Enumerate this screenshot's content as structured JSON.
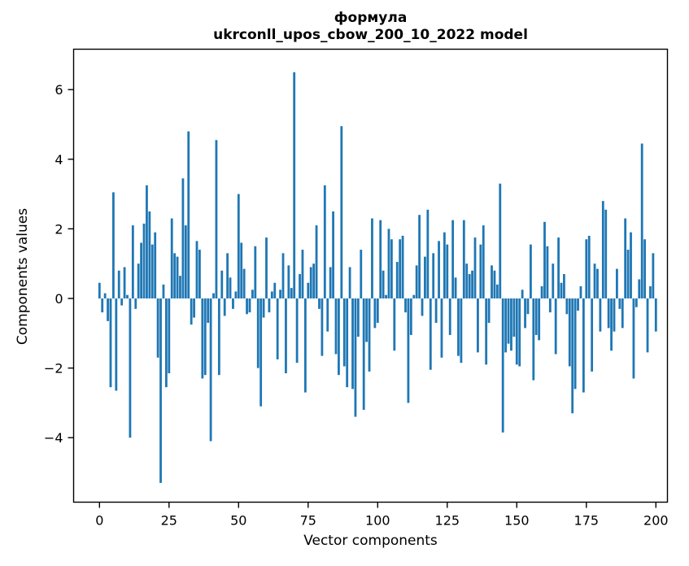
{
  "figure": {
    "background": "#ffffff",
    "spine_color": "#000000",
    "tick_label_color": "#000000"
  },
  "chart_data": {
    "type": "bar",
    "title": "формула",
    "subtitle": "ukrconll_upos_cbow_200_10_2022 model",
    "xlabel": "Vector components",
    "ylabel": "Components values",
    "bar_color": "#1f77b4",
    "grid": false,
    "legend": null,
    "xlim": [
      -10,
      205
    ],
    "ylim": [
      -5.85,
      7.15
    ],
    "xticks": [
      0,
      25,
      50,
      75,
      100,
      125,
      150,
      175,
      200
    ],
    "yticks": [
      6,
      4,
      2,
      0,
      -2,
      -4
    ],
    "x_start": 0,
    "values": [
      0.45,
      -0.4,
      0.15,
      -0.65,
      -2.55,
      3.05,
      -2.65,
      0.8,
      -0.2,
      0.9,
      0.1,
      -4.0,
      2.1,
      -0.3,
      1.0,
      1.6,
      2.15,
      3.25,
      2.5,
      1.55,
      1.9,
      -1.7,
      -5.3,
      0.4,
      -2.55,
      -2.15,
      2.3,
      1.3,
      1.2,
      0.65,
      3.45,
      2.1,
      4.8,
      -0.75,
      -0.55,
      1.65,
      1.4,
      -2.3,
      -2.2,
      -0.7,
      -4.1,
      0.15,
      4.55,
      -2.2,
      0.8,
      -0.5,
      1.3,
      0.6,
      -0.3,
      0.2,
      3.0,
      1.6,
      0.85,
      -0.45,
      -0.4,
      0.25,
      1.5,
      -2.0,
      -3.1,
      -0.55,
      1.75,
      -0.4,
      0.2,
      0.45,
      -1.75,
      0.25,
      1.3,
      -2.15,
      0.95,
      0.3,
      6.5,
      -1.85,
      0.7,
      1.4,
      -2.7,
      0.45,
      0.9,
      1.0,
      2.1,
      -0.3,
      -1.65,
      3.25,
      -0.95,
      0.9,
      2.5,
      -1.6,
      -2.2,
      4.95,
      -1.95,
      -2.55,
      0.9,
      -2.6,
      -3.4,
      -1.1,
      1.4,
      -3.2,
      -1.25,
      -2.1,
      2.3,
      -0.85,
      -0.7,
      2.25,
      0.8,
      0.1,
      2.0,
      1.7,
      -1.5,
      1.05,
      1.7,
      1.8,
      -0.4,
      -3.0,
      -1.05,
      0.1,
      0.95,
      2.4,
      -0.5,
      1.2,
      2.55,
      -2.05,
      1.3,
      -0.7,
      1.65,
      -1.7,
      1.9,
      1.55,
      -1.05,
      2.25,
      0.6,
      -1.65,
      -1.85,
      2.25,
      1.0,
      0.7,
      0.8,
      1.75,
      -1.55,
      1.55,
      2.1,
      -1.9,
      -0.7,
      0.95,
      0.8,
      0.4,
      3.3,
      -3.85,
      -1.55,
      -1.3,
      -1.5,
      -1.1,
      -1.9,
      -1.95,
      0.25,
      -0.85,
      -0.45,
      1.55,
      -2.35,
      -1.05,
      -1.2,
      0.35,
      2.2,
      1.5,
      -0.4,
      1.0,
      -1.6,
      1.75,
      0.45,
      0.7,
      -0.45,
      -1.95,
      -3.3,
      -2.6,
      -0.35,
      0.35,
      -2.7,
      1.7,
      1.8,
      -2.1,
      1.0,
      0.85,
      -0.95,
      2.8,
      2.55,
      -0.85,
      -1.5,
      -0.95,
      0.85,
      -0.3,
      -0.85,
      2.3,
      1.4,
      1.9,
      -2.3,
      -0.25,
      0.55,
      4.45,
      1.7,
      -1.55,
      0.35,
      1.3,
      -0.95
    ]
  }
}
